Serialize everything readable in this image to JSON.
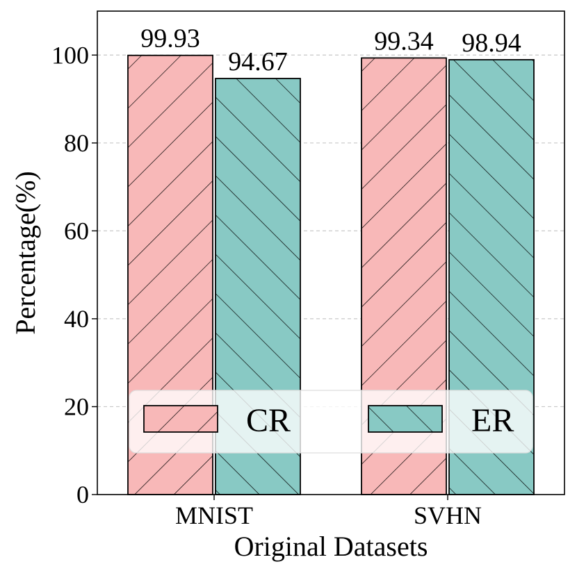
{
  "chart_data": {
    "type": "bar",
    "title": "",
    "xlabel": "Original Datasets",
    "ylabel": "Percentage(%)",
    "categories": [
      "MNIST",
      "SVHN"
    ],
    "series": [
      {
        "name": "CR",
        "values": [
          99.93,
          99.34
        ],
        "value_labels": [
          "99.93",
          "99.34"
        ],
        "color": "#f8b8b8",
        "hatch": "forward-diagonal"
      },
      {
        "name": "ER",
        "values": [
          94.67,
          98.94
        ],
        "value_labels": [
          "94.67",
          "98.94"
        ],
        "color": "#88c9c4",
        "hatch": "back-diagonal"
      }
    ],
    "ylim": [
      0,
      110
    ],
    "yticks": [
      0,
      20,
      40,
      60,
      80,
      100
    ],
    "ytick_labels": [
      "0",
      "20",
      "40",
      "60",
      "80",
      "100"
    ],
    "grid": "horizontal dashed",
    "legend": {
      "placement": "lower center",
      "entries": [
        "CR",
        "ER"
      ]
    }
  }
}
